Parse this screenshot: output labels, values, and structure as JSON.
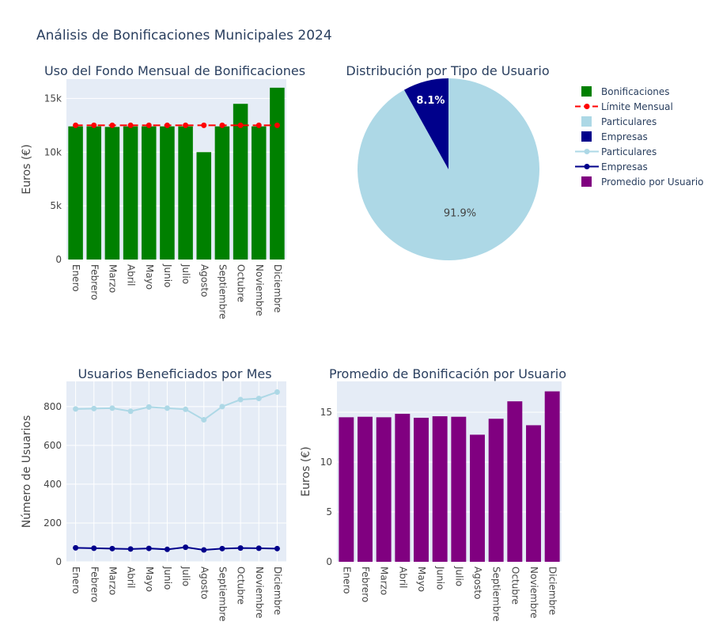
{
  "figure": {
    "title": "Análisis de Bonificaciones Municipales 2024"
  },
  "colors": {
    "plot_bg": "#e5ecf6",
    "grid": "#ffffff",
    "text": "#2a3f5f",
    "tick": "#444444",
    "bonificaciones": "#008000",
    "limite": "#ff0000",
    "particulares": "#add8e6",
    "empresas": "#00008b",
    "promedio": "#800080"
  },
  "legend": {
    "placement": "top-right",
    "items": [
      {
        "label": "Bonificaciones",
        "kind": "square",
        "color": "#008000"
      },
      {
        "label": "Límite Mensual",
        "kind": "dash-line",
        "color": "#ff0000"
      },
      {
        "label": "Particulares",
        "kind": "square",
        "color": "#add8e6"
      },
      {
        "label": "Empresas",
        "kind": "square",
        "color": "#00008b"
      },
      {
        "label": "Particulares",
        "kind": "line",
        "color": "#add8e6"
      },
      {
        "label": "Empresas",
        "kind": "line",
        "color": "#00008b"
      },
      {
        "label": "Promedio por Usuario",
        "kind": "square",
        "color": "#800080"
      }
    ]
  },
  "chart_data": [
    {
      "type": "bar",
      "title": "Uso del Fondo Mensual de Bonificaciones",
      "ylabel": "Euros (€)",
      "xlabel": "",
      "categories": [
        "Enero",
        "Febrero",
        "Marzo",
        "Abril",
        "Mayo",
        "Junio",
        "Julio",
        "Agosto",
        "Septiembre",
        "Octubre",
        "Noviembre",
        "Diciembre"
      ],
      "ylim": [
        0,
        16800
      ],
      "yticks": [
        0,
        5000,
        10000,
        15000
      ],
      "ytick_labels": [
        "0",
        "5k",
        "10k",
        "15k"
      ],
      "series": [
        {
          "name": "Bonificaciones",
          "type": "bar",
          "values": [
            12400,
            12400,
            12350,
            12400,
            12400,
            12400,
            12400,
            10000,
            12400,
            14500,
            12400,
            16000
          ]
        },
        {
          "name": "Límite Mensual",
          "type": "line",
          "values": [
            12500,
            12500,
            12500,
            12500,
            12500,
            12500,
            12500,
            12500,
            12500,
            12500,
            12500,
            12500
          ]
        }
      ],
      "grid": true
    },
    {
      "type": "pie",
      "title": "Distribución por Tipo de Usuario",
      "labels": [
        "Particulares",
        "Empresas"
      ],
      "values": [
        91.9,
        8.1
      ],
      "value_labels": [
        "91.9%",
        "8.1%"
      ]
    },
    {
      "type": "line",
      "title": "Usuarios Beneficiados por Mes",
      "ylabel": "Número de Usuarios",
      "xlabel": "",
      "categories": [
        "Enero",
        "Febrero",
        "Marzo",
        "Abril",
        "Mayo",
        "Junio",
        "Julio",
        "Agosto",
        "Septiembre",
        "Octubre",
        "Noviembre",
        "Diciembre"
      ],
      "ylim": [
        0,
        930
      ],
      "yticks": [
        0,
        200,
        400,
        600,
        800
      ],
      "ytick_labels": [
        "0",
        "200",
        "400",
        "600",
        "800"
      ],
      "series": [
        {
          "name": "Particulares",
          "values": [
            788,
            790,
            792,
            776,
            798,
            792,
            786,
            732,
            800,
            836,
            842,
            875
          ]
        },
        {
          "name": "Empresas",
          "values": [
            72,
            70,
            68,
            66,
            69,
            64,
            75,
            61,
            68,
            71,
            70,
            68
          ]
        }
      ],
      "grid": true
    },
    {
      "type": "bar",
      "title": "Promedio de Bonificación por Usuario",
      "ylabel": "Euros (€)",
      "xlabel": "",
      "categories": [
        "Enero",
        "Febrero",
        "Marzo",
        "Abril",
        "Mayo",
        "Junio",
        "Julio",
        "Agosto",
        "Septiembre",
        "Octubre",
        "Noviembre",
        "Diciembre"
      ],
      "ylim": [
        0,
        18.1
      ],
      "yticks": [
        0,
        5,
        10,
        15
      ],
      "ytick_labels": [
        "0",
        "5",
        "10",
        "15"
      ],
      "series": [
        {
          "name": "Promedio por Usuario",
          "values": [
            14.5,
            14.55,
            14.5,
            14.85,
            14.45,
            14.6,
            14.55,
            12.75,
            14.35,
            16.1,
            13.7,
            17.1
          ]
        }
      ],
      "grid": true
    }
  ]
}
